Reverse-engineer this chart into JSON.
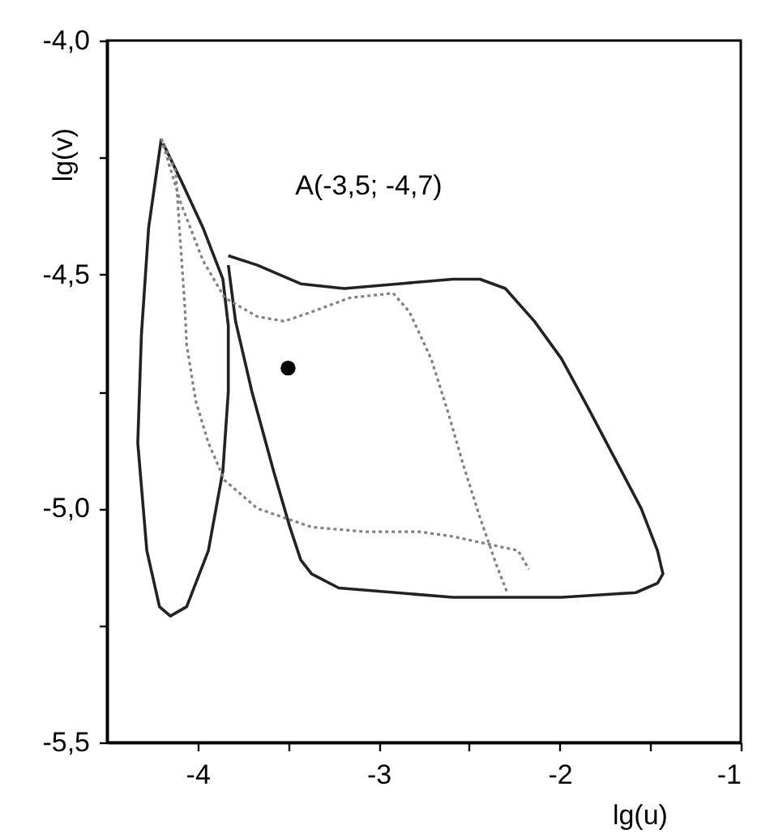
{
  "chart_data": {
    "type": "line",
    "xlabel": "lg(u)",
    "ylabel": "lg(v)",
    "xlim": [
      -4.5,
      -1
    ],
    "ylim": [
      -5.5,
      -4.0
    ],
    "xticks": [
      -4,
      {
        "value": -3.5,
        "label": null
      },
      -3,
      {
        "value": -2.5,
        "label": null
      },
      -2,
      {
        "value": -1.5,
        "label": null
      },
      -1
    ],
    "yticks": [
      {
        "value": -4.0,
        "label": "-4,0"
      },
      {
        "value": -4.25,
        "label": null
      },
      {
        "value": -4.5,
        "label": "-4,5"
      },
      {
        "value": -4.75,
        "label": null
      },
      {
        "value": -5.0,
        "label": "-5,0"
      },
      {
        "value": -5.25,
        "label": null
      },
      {
        "value": -5.5,
        "label": "-5,5"
      }
    ],
    "grid": false,
    "marker": "none",
    "line_style": "solid",
    "annotations": [
      "A(-3,5; -4,7)"
    ],
    "series": [
      {
        "color": "#222222",
        "x": [
          -4.2,
          -4.27,
          -4.31,
          -4.33,
          -4.28,
          -4.21,
          -4.15,
          -4.06,
          -3.94,
          -3.86,
          -3.83,
          -3.83,
          -3.86,
          -3.97,
          -4.09,
          -4.19
        ],
        "values": [
          -4.21,
          -4.4,
          -4.63,
          -4.86,
          -5.09,
          -5.21,
          -5.23,
          -5.21,
          -5.09,
          -4.92,
          -4.75,
          -4.61,
          -4.51,
          -4.4,
          -4.3,
          -4.22
        ]
      },
      {
        "color": "#222222",
        "x": [
          -3.83,
          -3.67,
          -3.43,
          -3.19,
          -2.89,
          -2.59,
          -2.44,
          -2.3,
          -2.14,
          -1.99,
          -1.85,
          -1.7,
          -1.55,
          -1.46,
          -1.43,
          -1.46,
          -1.58,
          -1.99,
          -2.59,
          -3.22,
          -3.37,
          -3.43,
          -3.49,
          -3.58,
          -3.7,
          -3.79,
          -3.82,
          -3.83
        ],
        "values": [
          -4.46,
          -4.48,
          -4.52,
          -4.53,
          -4.52,
          -4.51,
          -4.51,
          -4.53,
          -4.6,
          -4.68,
          -4.78,
          -4.89,
          -5.0,
          -5.09,
          -5.14,
          -5.16,
          -5.18,
          -5.19,
          -5.19,
          -5.17,
          -5.14,
          -5.11,
          -5.04,
          -4.92,
          -4.75,
          -4.6,
          -4.51,
          -4.48
        ]
      },
      {
        "color": "#808080",
        "line_style": "dotted",
        "x": [
          -4.2,
          -4.12,
          -4.1,
          -4.07,
          -4.06,
          -4.01,
          -3.94,
          -3.85,
          -3.67,
          -3.37,
          -3.07,
          -2.77,
          -2.59,
          -2.35,
          -2.23,
          -2.17
        ],
        "values": [
          -4.21,
          -4.28,
          -4.4,
          -4.57,
          -4.65,
          -4.77,
          -4.86,
          -4.94,
          -5.0,
          -5.04,
          -5.05,
          -5.05,
          -5.06,
          -5.08,
          -5.09,
          -5.13
        ]
      },
      {
        "color": "#808080",
        "line_style": "dotted",
        "x": [
          -4.2,
          -4.09,
          -3.97,
          -3.85,
          -3.67,
          -3.52,
          -3.37,
          -3.16,
          -2.92,
          -2.83,
          -2.71,
          -2.62,
          -2.53,
          -2.44,
          -2.35,
          -2.29
        ],
        "values": [
          -4.21,
          -4.35,
          -4.47,
          -4.55,
          -4.59,
          -4.6,
          -4.58,
          -4.55,
          -4.54,
          -4.58,
          -4.68,
          -4.79,
          -4.91,
          -5.02,
          -5.12,
          -5.18
        ]
      },
      {
        "type": "scatter",
        "color": "#000000",
        "marker": "circle",
        "x": [
          -3.5
        ],
        "values": [
          -4.7
        ]
      }
    ]
  }
}
